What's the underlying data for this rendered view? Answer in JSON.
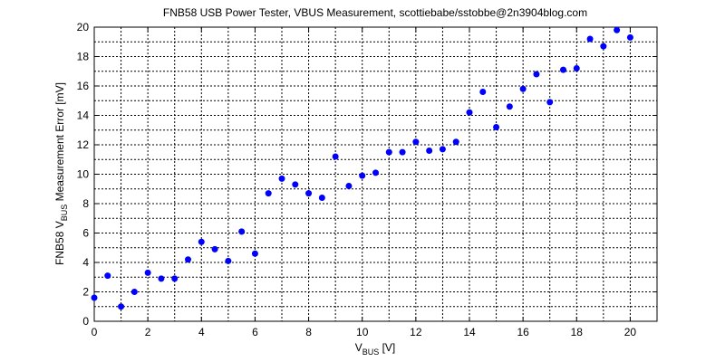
{
  "chart_data": {
    "type": "scatter",
    "title": "FNB58 USB Power Tester, VBUS Measurement, scottiebabe/sstobbe@2n3904blog.com",
    "xlabel": {
      "main": "V",
      "sub": "BUS",
      "rest": " [V]"
    },
    "ylabel": {
      "main": "FNB58 V",
      "sub": "BUS",
      "rest": " Measurement Error [mV]"
    },
    "x": [
      0,
      0.5,
      1,
      1.5,
      2,
      2.5,
      3,
      3.5,
      4,
      4.5,
      5,
      5.5,
      6,
      6.5,
      7,
      7.5,
      8,
      8.5,
      9,
      9.5,
      10,
      10.5,
      11,
      11.5,
      12,
      12.5,
      13,
      13.5,
      14,
      14.5,
      15,
      15.5,
      16,
      16.5,
      17,
      17.5,
      18,
      18.5,
      19,
      19.5,
      20
    ],
    "series": [
      {
        "color": "#0000ff",
        "values": [
          1.6,
          3.1,
          1.0,
          2.0,
          3.3,
          2.9,
          2.9,
          4.2,
          5.4,
          4.9,
          4.1,
          6.1,
          4.6,
          8.7,
          9.7,
          9.3,
          8.7,
          8.4,
          11.2,
          9.2,
          9.9,
          10.1,
          11.5,
          11.5,
          12.2,
          11.6,
          11.7,
          12.2,
          14.2,
          15.6,
          13.2,
          14.6,
          15.8,
          16.8,
          14.9,
          17.1,
          17.2,
          19.2,
          18.7,
          19.8,
          19.3
        ]
      }
    ],
    "xlim": [
      0,
      21
    ],
    "ylim": [
      0,
      20
    ],
    "xticks": [
      0,
      2,
      4,
      6,
      8,
      10,
      12,
      14,
      16,
      18,
      20
    ],
    "yticks": [
      0,
      2,
      4,
      6,
      8,
      10,
      12,
      14,
      16,
      18,
      20
    ],
    "minor_xticks": [
      1,
      3,
      5,
      7,
      9,
      11,
      13,
      15,
      17,
      19,
      21
    ],
    "minor_yticks": [
      1,
      3,
      5,
      7,
      9,
      11,
      13,
      15,
      17,
      19
    ],
    "grid": true
  }
}
